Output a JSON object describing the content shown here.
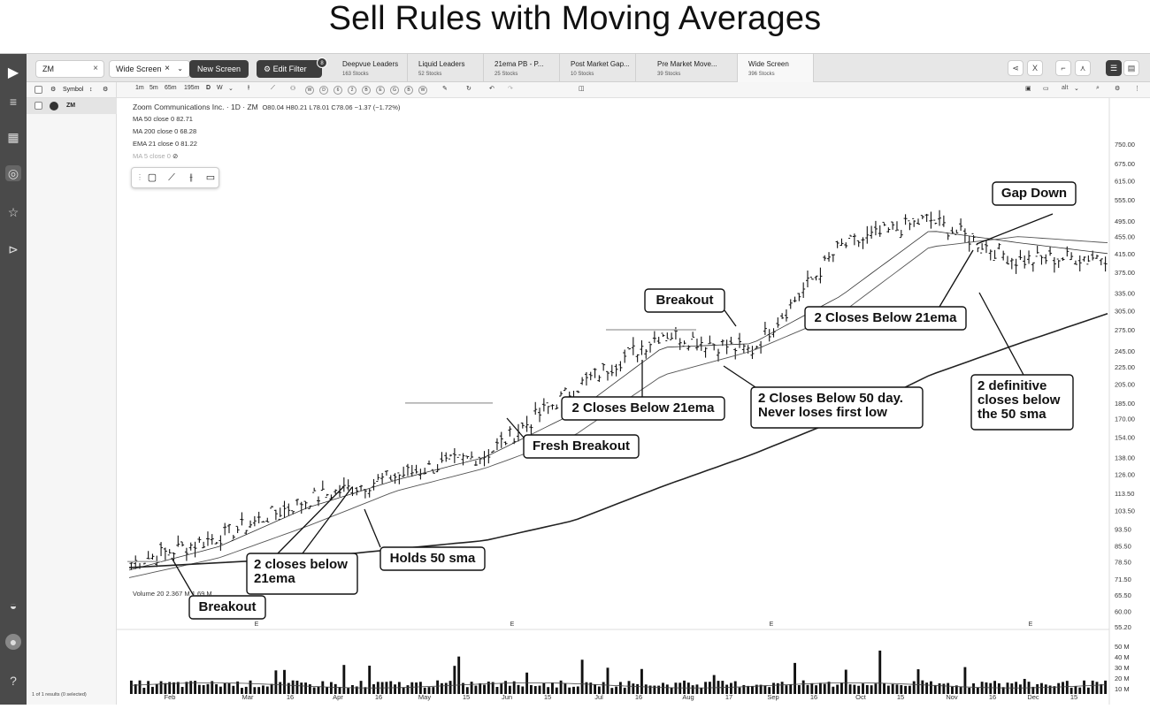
{
  "page_title": "Sell Rules with Moving Averages",
  "topbar": {
    "search_value": "ZM",
    "screen_select": "Wide Screen",
    "new_screen": "New Screen",
    "edit_filter": "Edit Filter",
    "filter_count": "8",
    "tabs": [
      {
        "title": "Deepvue Leaders",
        "count": "163 Stocks"
      },
      {
        "title": "Liquid Leaders",
        "count": "52 Stocks"
      },
      {
        "title": "21ema PB - P...",
        "count": "25 Stocks"
      },
      {
        "title": "Post Market Gap...",
        "count": "10 Stocks"
      },
      {
        "title": "Pre Market Move...",
        "count": "39 Stocks"
      },
      {
        "title": "Wide Screen",
        "count": "396 Stocks"
      }
    ]
  },
  "sidebar": {
    "header": "Symbol",
    "rows": [
      {
        "symbol": "ZM"
      }
    ],
    "footer": "1 of 1 results (0 selected)"
  },
  "toolbar": {
    "timeframes": [
      "1m",
      "5m",
      "65m",
      "195m",
      "D",
      "W"
    ],
    "periods": [
      "W",
      "D",
      "6",
      "2",
      "B",
      "E",
      "G",
      "B",
      "W"
    ],
    "alt_label": "alt"
  },
  "legend": {
    "title": "Zoom Communications Inc. · 1D · ZM",
    "ohlc": "O80.04  H80.21  L78.01  C78.06  −1.37 (−1.72%)",
    "ma50": "MA 50 close 0  82.71",
    "ma200": "MA 200 close 0  68.28",
    "ema21": "EMA 21 close 0  81.22",
    "ma5": "MA 5 close 0",
    "volume": "Volume 20  2.367 M  1.69 M"
  },
  "annotations": [
    {
      "text": "Gap Down"
    },
    {
      "text": "Breakout"
    },
    {
      "text": "2 Closes Below 21ema"
    },
    {
      "text": "2 Closes Below 21ema"
    },
    {
      "text": "2 Closes Below 50 day.",
      "text2": "Never loses first low"
    },
    {
      "text": "2 definitive",
      "text2": "closes below",
      "text3": "the 50 sma"
    },
    {
      "text": "Fresh Breakout"
    },
    {
      "text": "Holds 50 sma"
    },
    {
      "text": "2 closes below",
      "text2": "21ema"
    },
    {
      "text": "Breakout"
    }
  ],
  "chart_data": {
    "type": "line",
    "title": "",
    "y_ticks": [
      "750.00",
      "675.00",
      "615.00",
      "555.00",
      "495.00",
      "455.00",
      "415.00",
      "375.00",
      "335.00",
      "305.00",
      "275.00",
      "245.00",
      "225.00",
      "205.00",
      "185.00",
      "170.00",
      "154.00",
      "138.00",
      "126.00",
      "113.50",
      "103.50",
      "93.50",
      "85.50",
      "78.50",
      "71.50",
      "65.50",
      "60.00",
      "55.20"
    ],
    "vol_ticks": [
      "50 M",
      "40 M",
      "30 M",
      "20 M",
      "10 M"
    ],
    "x_ticks": [
      "Feb",
      "Mar",
      "16",
      "Apr",
      "16",
      "May",
      "15",
      "Jun",
      "15",
      "Jul",
      "16",
      "Aug",
      "17",
      "Sep",
      "16",
      "Oct",
      "15",
      "Nov",
      "16",
      "Dec",
      "15"
    ],
    "earnings_marker": "E",
    "y_scale": "log",
    "price_close_approx": [
      {
        "x": "Jan",
        "y": 78
      },
      {
        "x": "Feb",
        "y": 90
      },
      {
        "x": "Mar",
        "y": 110
      },
      {
        "x": "Apr",
        "y": 125
      },
      {
        "x": "May",
        "y": 140
      },
      {
        "x": "Jun",
        "y": 200
      },
      {
        "x": "Jul",
        "y": 270
      },
      {
        "x": "Aug",
        "y": 245
      },
      {
        "x": "Sep",
        "y": 430
      },
      {
        "x": "Oct",
        "y": 500
      },
      {
        "x": "Nov",
        "y": 400
      },
      {
        "x": "Dec",
        "y": 410
      }
    ],
    "series": [
      {
        "name": "EMA 21",
        "values": [
          75,
          85,
          105,
          122,
          138,
          175,
          250,
          255,
          330,
          470,
          440,
          415
        ]
      },
      {
        "name": "MA 50",
        "values": [
          72,
          80,
          95,
          115,
          130,
          155,
          215,
          245,
          300,
          430,
          455,
          440
        ]
      },
      {
        "name": "MA 200",
        "values": [
          76,
          78,
          80,
          84,
          88,
          98,
          118,
          140,
          170,
          215,
          255,
          300
        ]
      }
    ]
  },
  "colors": {
    "nav_bg": "#4a4a4a",
    "accent_dark": "#3d3d3d",
    "candle": "#111111"
  }
}
